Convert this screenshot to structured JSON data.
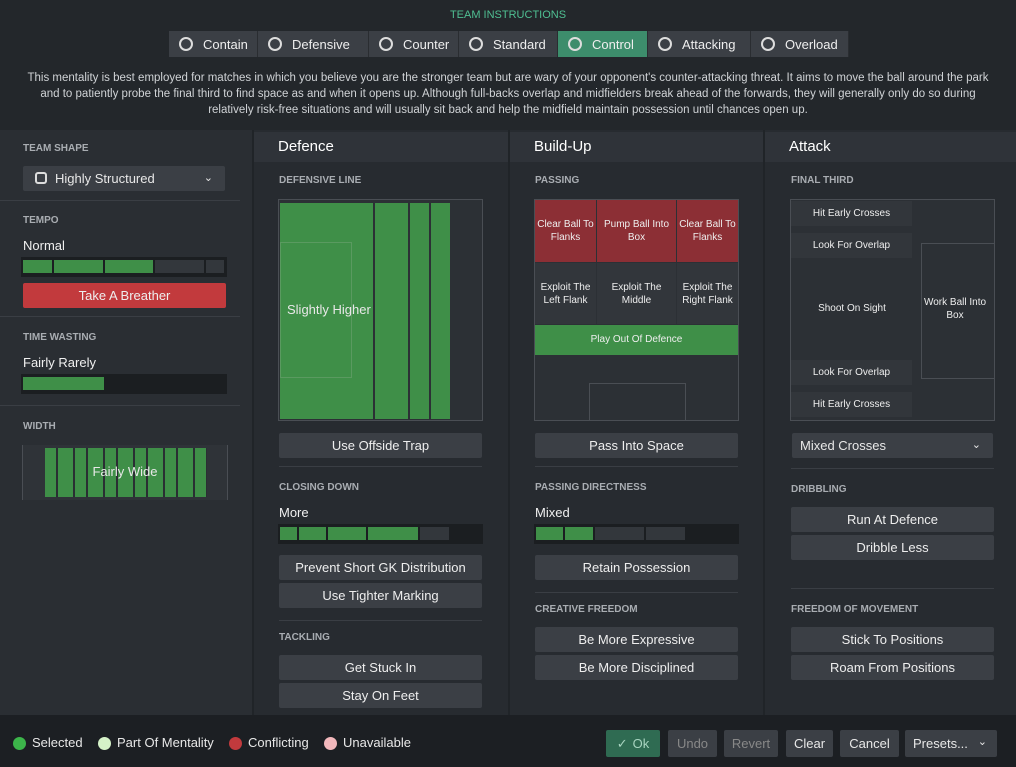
{
  "header": {
    "title": "TEAM INSTRUCTIONS",
    "tabs": [
      "Contain",
      "Defensive",
      "Counter",
      "Standard",
      "Control",
      "Attacking",
      "Overload"
    ],
    "description": "This mentality is best employed for matches in which you believe you are the stronger team but are wary of your opponent's counter-attacking threat. It aims to move the ball around the park and to patiently probe the final third to find space as and when it opens up. Although full-backs overlap and midfielders break ahead of the forwards, they will generally only do so during relatively risk-free situations and will usually sit back and help the midfield maintain possession until chances open up."
  },
  "left": {
    "team_shape": {
      "label": "TEAM SHAPE",
      "value": "Highly Structured"
    },
    "tempo": {
      "label": "TEMPO",
      "value": "Normal",
      "button": "Take A Breather"
    },
    "time_wasting": {
      "label": "TIME WASTING",
      "value": "Fairly Rarely"
    },
    "width": {
      "label": "WIDTH",
      "value": "Fairly Wide"
    }
  },
  "defence": {
    "title": "Defence",
    "defensive_line": {
      "label": "DEFENSIVE LINE",
      "value": "Slightly Higher",
      "button": "Use Offside Trap"
    },
    "closing_down": {
      "label": "CLOSING DOWN",
      "value": "More",
      "buttons": [
        "Prevent Short GK Distribution",
        "Use Tighter Marking"
      ]
    },
    "tackling": {
      "label": "TACKLING",
      "buttons": [
        "Get Stuck In",
        "Stay On Feet"
      ]
    }
  },
  "build_up": {
    "title": "Build-Up",
    "passing": {
      "label": "PASSING",
      "cells": [
        "Clear Ball To Flanks",
        "Pump Ball Into Box",
        "Clear Ball To Flanks",
        "Exploit The Left Flank",
        "Exploit The Middle",
        "Exploit The Right Flank",
        "Play Out Of Defence"
      ],
      "button": "Pass Into Space"
    },
    "passing_directness": {
      "label": "PASSING DIRECTNESS",
      "value": "Mixed",
      "button": "Retain Possession"
    },
    "creative_freedom": {
      "label": "CREATIVE FREEDOM",
      "buttons": [
        "Be More Expressive",
        "Be More Disciplined"
      ]
    }
  },
  "attack": {
    "title": "Attack",
    "final_third": {
      "label": "FINAL THIRD",
      "cells": [
        "Hit Early Crosses",
        "Look For Overlap",
        "Shoot On Sight",
        "Work Ball Into Box",
        "Look For Overlap",
        "Hit Early Crosses"
      ],
      "dropdown": "Mixed Crosses"
    },
    "dribbling": {
      "label": "DRIBBLING",
      "buttons": [
        "Run At Defence",
        "Dribble Less"
      ]
    },
    "freedom_of_movement": {
      "label": "FREEDOM OF MOVEMENT",
      "buttons": [
        "Stick To Positions",
        "Roam From Positions"
      ]
    }
  },
  "footer": {
    "legend": [
      "Selected",
      "Part Of Mentality",
      "Conflicting",
      "Unavailable"
    ],
    "buttons": [
      "Ok",
      "Undo",
      "Revert",
      "Clear",
      "Cancel",
      "Presets..."
    ]
  }
}
